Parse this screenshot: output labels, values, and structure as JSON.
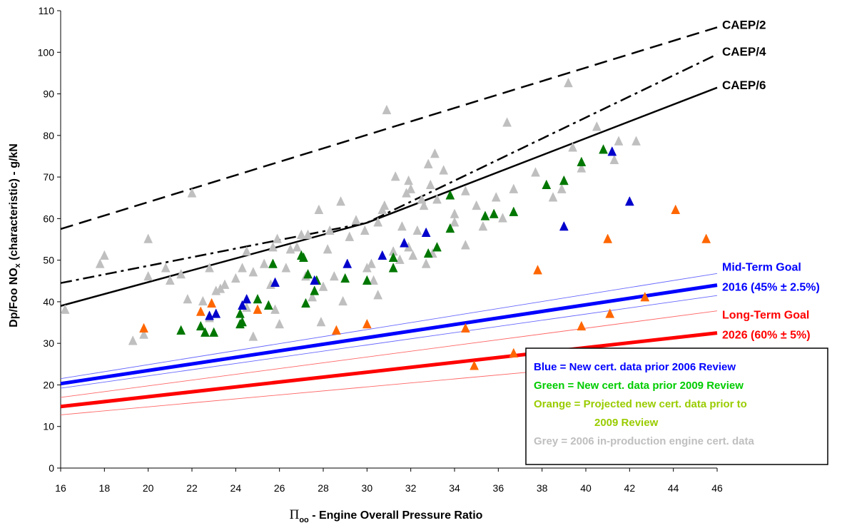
{
  "chart_data": {
    "type": "scatter",
    "xlabel": "Πoo - Engine Overall Pressure Ratio",
    "xlabel_parts": {
      "symbol": "Π",
      "subscript": "oo",
      "rest": " - Engine Overall Pressure Ratio"
    },
    "ylabel": "Dp/Foo NOx (characteristic) - g/kN",
    "ylabel_parts": {
      "main": "Dp/Foo NO",
      "subscript": "x",
      "rest": " (characteristic) - g/kN"
    },
    "xlim": [
      16,
      46
    ],
    "ylim": [
      0,
      110
    ],
    "x_ticks": [
      16,
      18,
      20,
      22,
      24,
      26,
      28,
      30,
      32,
      34,
      36,
      38,
      40,
      42,
      44,
      46
    ],
    "y_ticks": [
      0,
      10,
      20,
      30,
      40,
      50,
      60,
      70,
      80,
      90,
      100,
      110
    ],
    "grid": false,
    "colors": {
      "blue": "#0000cc",
      "green": "#007700",
      "orange": "#ff6600",
      "grey": "#bfbfbf",
      "legend_green": "#00cc00",
      "legend_orange": "#99cc00",
      "goal_blue": "#0000ff",
      "goal_red": "#ff0000",
      "goal_blue_band": "#6666ff",
      "goal_red_band": "#ff6666"
    },
    "limit_lines": [
      {
        "name": "CAEP/2",
        "style": "dashed",
        "points": [
          [
            16,
            57.5
          ],
          [
            46,
            106
          ]
        ]
      },
      {
        "name": "CAEP/4",
        "style": "dashdot",
        "points": [
          [
            16,
            44.5
          ],
          [
            30,
            59
          ],
          [
            46,
            99.5
          ]
        ]
      },
      {
        "name": "CAEP/6",
        "style": "solid",
        "points": [
          [
            16,
            39
          ],
          [
            30,
            59
          ],
          [
            46,
            91.5
          ]
        ]
      }
    ],
    "goals": [
      {
        "line1": "Mid-Term Goal",
        "line2": "2016 (45% ± 2.5%)",
        "color": "goal_blue",
        "band_color": "goal_blue_band",
        "center": [
          [
            16,
            20.3
          ],
          [
            46,
            44
          ]
        ],
        "upper": [
          [
            16,
            21.5
          ],
          [
            46,
            46.8
          ]
        ],
        "lower": [
          [
            16,
            19.2
          ],
          [
            46,
            41.5
          ]
        ]
      },
      {
        "line1": "Long-Term Goal",
        "line2": "2026 (60% ± 5%)",
        "color": "goal_red",
        "band_color": "goal_red_band",
        "center": [
          [
            16,
            14.8
          ],
          [
            46,
            32.5
          ]
        ],
        "upper": [
          [
            16,
            17
          ],
          [
            46,
            37.8
          ]
        ],
        "lower": [
          [
            16,
            12.8
          ],
          [
            46,
            27.2
          ]
        ]
      }
    ],
    "series": [
      {
        "name": "Grey",
        "color": "grey",
        "points": [
          [
            16.2,
            38
          ],
          [
            17.8,
            49
          ],
          [
            18,
            51
          ],
          [
            19.3,
            30.5
          ],
          [
            19.8,
            32
          ],
          [
            20,
            46
          ],
          [
            20,
            55
          ],
          [
            20.8,
            48
          ],
          [
            21,
            45
          ],
          [
            21.5,
            46.5
          ],
          [
            21.8,
            40.5
          ],
          [
            22,
            66
          ],
          [
            22.5,
            40
          ],
          [
            22.8,
            48
          ],
          [
            22.8,
            36
          ],
          [
            23.1,
            42.5
          ],
          [
            23.3,
            43
          ],
          [
            23.5,
            44
          ],
          [
            24,
            45.5
          ],
          [
            24.3,
            48
          ],
          [
            24.5,
            52
          ],
          [
            24.5,
            38.5
          ],
          [
            24.8,
            31.5
          ],
          [
            24.8,
            47
          ],
          [
            25.3,
            49
          ],
          [
            25.5,
            39
          ],
          [
            25.6,
            44
          ],
          [
            25.7,
            53
          ],
          [
            25.8,
            38
          ],
          [
            25.9,
            55
          ],
          [
            26,
            34.5
          ],
          [
            26.3,
            48
          ],
          [
            26.5,
            52.5
          ],
          [
            26.8,
            53
          ],
          [
            27,
            56
          ],
          [
            27.2,
            46
          ],
          [
            27.3,
            56
          ],
          [
            27.5,
            41
          ],
          [
            27.8,
            62
          ],
          [
            27.9,
            35
          ],
          [
            28,
            43.5
          ],
          [
            28.2,
            52.5
          ],
          [
            28.3,
            57
          ],
          [
            28.5,
            46
          ],
          [
            28.8,
            64
          ],
          [
            28.9,
            40
          ],
          [
            29.2,
            55.5
          ],
          [
            29.5,
            59.5
          ],
          [
            29.9,
            57
          ],
          [
            30,
            48
          ],
          [
            30.2,
            49
          ],
          [
            30.3,
            45
          ],
          [
            30.5,
            59
          ],
          [
            30.5,
            41.5
          ],
          [
            30.7,
            62
          ],
          [
            30.8,
            63
          ],
          [
            30.9,
            86
          ],
          [
            31.2,
            52
          ],
          [
            31.3,
            70
          ],
          [
            31.5,
            50
          ],
          [
            31.6,
            58
          ],
          [
            31.8,
            66
          ],
          [
            31.9,
            69
          ],
          [
            31.9,
            53
          ],
          [
            32,
            67
          ],
          [
            32.1,
            51
          ],
          [
            32.3,
            57
          ],
          [
            32.5,
            64.5
          ],
          [
            32.6,
            63
          ],
          [
            32.7,
            49
          ],
          [
            32.8,
            73
          ],
          [
            32.9,
            68
          ],
          [
            33,
            51.5
          ],
          [
            33.1,
            75.5
          ],
          [
            33.2,
            64.5
          ],
          [
            33.5,
            71.5
          ],
          [
            34,
            61
          ],
          [
            34,
            59
          ],
          [
            34.5,
            66.5
          ],
          [
            34.5,
            53.5
          ],
          [
            35,
            63
          ],
          [
            35.3,
            58
          ],
          [
            35.9,
            65
          ],
          [
            36.2,
            60
          ],
          [
            36.4,
            83
          ],
          [
            36.7,
            67
          ],
          [
            37.7,
            71
          ],
          [
            38.5,
            65
          ],
          [
            38.9,
            67
          ],
          [
            39,
            69
          ],
          [
            39.2,
            92.5
          ],
          [
            39.4,
            77
          ],
          [
            39.8,
            72
          ],
          [
            40.5,
            82
          ],
          [
            41.3,
            74
          ],
          [
            41.5,
            78.5
          ],
          [
            42.3,
            78.5
          ]
        ]
      },
      {
        "name": "Green",
        "color": "green",
        "points": [
          [
            21.5,
            33
          ],
          [
            22.4,
            34
          ],
          [
            22.6,
            32.5
          ],
          [
            23,
            32.5
          ],
          [
            24.2,
            34.5
          ],
          [
            24.2,
            37
          ],
          [
            24.3,
            35
          ],
          [
            25,
            40.5
          ],
          [
            25.5,
            39
          ],
          [
            25.7,
            49
          ],
          [
            27,
            51
          ],
          [
            27.1,
            50.5
          ],
          [
            27.2,
            39.5
          ],
          [
            27.3,
            46.5
          ],
          [
            27.6,
            42.5
          ],
          [
            27.7,
            45
          ],
          [
            29,
            45.5
          ],
          [
            30,
            45
          ],
          [
            31.2,
            50.5
          ],
          [
            31.2,
            48
          ],
          [
            32.8,
            51.5
          ],
          [
            33.2,
            53
          ],
          [
            33.8,
            65.5
          ],
          [
            33.8,
            57.5
          ],
          [
            35.4,
            60.5
          ],
          [
            35.8,
            61
          ],
          [
            36.7,
            61.5
          ],
          [
            38.2,
            68
          ],
          [
            39,
            69
          ],
          [
            39.8,
            73.5
          ],
          [
            40.8,
            76.5
          ]
        ]
      },
      {
        "name": "Blue",
        "color": "blue",
        "points": [
          [
            22.8,
            36.5
          ],
          [
            23.1,
            37
          ],
          [
            24.3,
            39
          ],
          [
            24.5,
            40.5
          ],
          [
            25.8,
            44.5
          ],
          [
            27.6,
            45
          ],
          [
            29.1,
            49
          ],
          [
            30.7,
            51
          ],
          [
            31.7,
            54
          ],
          [
            32.7,
            56.5
          ],
          [
            39,
            58
          ],
          [
            41.2,
            76
          ],
          [
            42,
            64
          ]
        ]
      },
      {
        "name": "Orange",
        "color": "orange",
        "points": [
          [
            19.8,
            33.5
          ],
          [
            22.4,
            37.5
          ],
          [
            22.9,
            39.5
          ],
          [
            25,
            38
          ],
          [
            28.6,
            33
          ],
          [
            30,
            34.5
          ],
          [
            34.5,
            33.5
          ],
          [
            34.9,
            24.5
          ],
          [
            36.7,
            27.5
          ],
          [
            37.8,
            47.5
          ],
          [
            39.8,
            34
          ],
          [
            41,
            55
          ],
          [
            41.1,
            37
          ],
          [
            42.7,
            41
          ],
          [
            44.1,
            62
          ],
          [
            45.5,
            55
          ]
        ]
      }
    ],
    "legend": {
      "placement": "bottom-right",
      "items": [
        {
          "text": "Blue = New cert. data prior 2006 Review",
          "color": "goal_blue"
        },
        {
          "text": "Green = New cert. data prior 2009 Review",
          "color": "legend_green"
        },
        {
          "text": "Orange = Projected new cert. data prior to",
          "color": "legend_orange"
        },
        {
          "text": "2009 Review",
          "color": "legend_orange"
        },
        {
          "text": "Grey = 2006 in-production engine cert. data",
          "color": "grey"
        }
      ]
    }
  }
}
